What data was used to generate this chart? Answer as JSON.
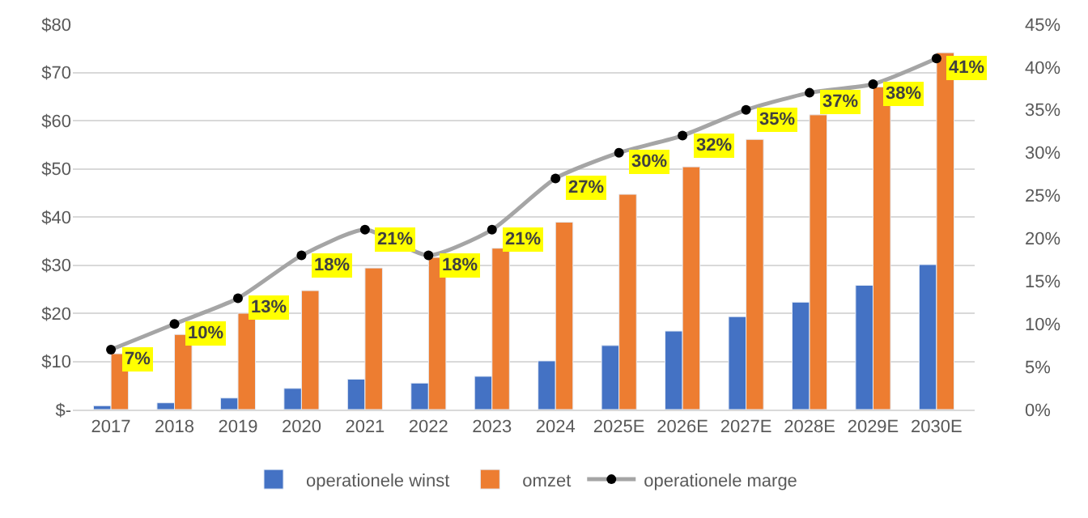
{
  "chart_data": {
    "type": "bar",
    "categories": [
      "2017",
      "2018",
      "2019",
      "2020",
      "2021",
      "2022",
      "2023",
      "2024",
      "2025E",
      "2026E",
      "2027E",
      "2028E",
      "2029E",
      "2030E"
    ],
    "series": [
      {
        "name": "operationele winst",
        "color": "#4472c4",
        "values": [
          0.8,
          1.4,
          2.4,
          4.4,
          6.3,
          5.5,
          6.9,
          10.1,
          13.3,
          16.3,
          19.3,
          22.3,
          25.8,
          30.1
        ]
      },
      {
        "name": "omzet",
        "color": "#ed7d31",
        "values": [
          11.6,
          15.6,
          20.0,
          24.7,
          29.4,
          31.6,
          33.5,
          38.9,
          44.7,
          50.4,
          56.1,
          61.2,
          67.0,
          74.1
        ]
      },
      {
        "name": "operationele marge",
        "type": "line",
        "axis": "y2",
        "color": "#a5a5a5",
        "marker": "circle",
        "values": [
          7,
          10,
          13,
          18,
          21,
          18,
          21,
          27,
          30,
          32,
          35,
          37,
          38,
          41
        ],
        "value_labels": [
          "7%",
          "10%",
          "13%",
          "18%",
          "21%",
          "18%",
          "21%",
          "27%",
          "30%",
          "32%",
          "35%",
          "37%",
          "38%",
          "41%"
        ]
      }
    ],
    "ylim": [
      0,
      80
    ],
    "yticks": [
      {
        "value": 0,
        "label": "$-"
      },
      {
        "value": 10,
        "label": "$10"
      },
      {
        "value": 20,
        "label": "$20"
      },
      {
        "value": 30,
        "label": "$30"
      },
      {
        "value": 40,
        "label": "$40"
      },
      {
        "value": 50,
        "label": "$50"
      },
      {
        "value": 60,
        "label": "$60"
      },
      {
        "value": 70,
        "label": "$70"
      },
      {
        "value": 80,
        "label": "$80"
      }
    ],
    "y2lim": [
      0,
      45
    ],
    "y2ticks": [
      {
        "value": 0,
        "label": "0%"
      },
      {
        "value": 5,
        "label": "5%"
      },
      {
        "value": 10,
        "label": "10%"
      },
      {
        "value": 15,
        "label": "15%"
      },
      {
        "value": 20,
        "label": "20%"
      },
      {
        "value": 25,
        "label": "25%"
      },
      {
        "value": 30,
        "label": "30%"
      },
      {
        "value": 35,
        "label": "35%"
      },
      {
        "value": 40,
        "label": "40%"
      },
      {
        "value": 45,
        "label": "45%"
      }
    ],
    "grid": "y",
    "legend": "bottom"
  }
}
